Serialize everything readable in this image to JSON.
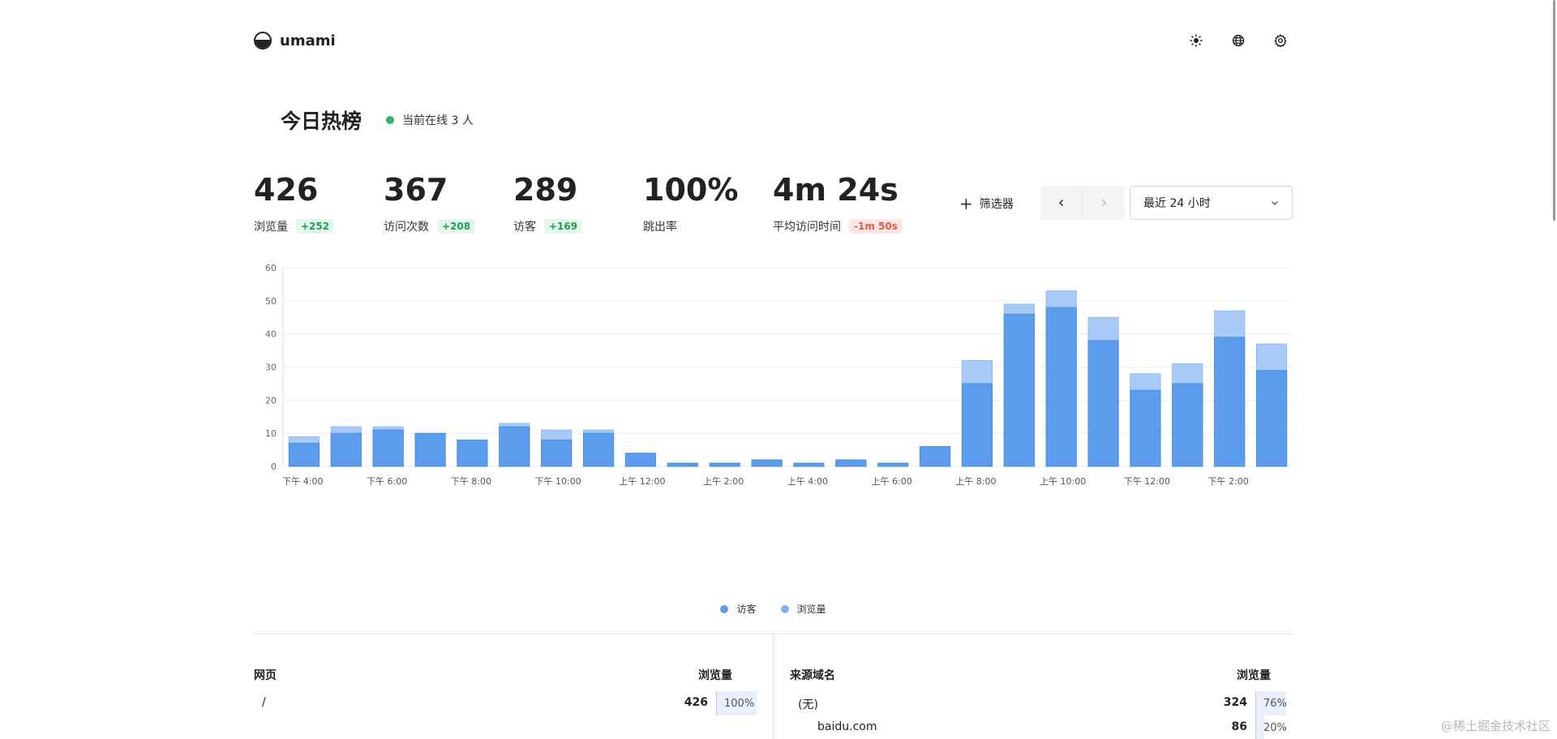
{
  "app": {
    "name": "umami"
  },
  "header": {
    "icons": [
      "sun-icon",
      "globe-icon",
      "gear-icon"
    ]
  },
  "page": {
    "title": "今日热榜",
    "online_text": "当前在线 3 人"
  },
  "metrics": [
    {
      "value": "426",
      "label": "浏览量",
      "change": "+252",
      "trend": "pos"
    },
    {
      "value": "367",
      "label": "访问次数",
      "change": "+208",
      "trend": "pos"
    },
    {
      "value": "289",
      "label": "访客",
      "change": "+169",
      "trend": "pos"
    },
    {
      "value": "100%",
      "label": "跳出率",
      "change": "",
      "trend": "none"
    },
    {
      "value": "4m 24s",
      "label": "平均访问时间",
      "change": "-1m 50s",
      "trend": "neg"
    }
  ],
  "controls": {
    "filter_label": "筛选器",
    "date_range": "最近 24 小时"
  },
  "colors": {
    "visitors": "#5b9cec",
    "pageviews": "#a9c9f6",
    "online": "#2bb36b"
  },
  "chart_data": {
    "type": "bar",
    "stacked": "overlay",
    "categories": [
      "下午 4:00",
      "下午 5:00",
      "下午 6:00",
      "下午 7:00",
      "下午 8:00",
      "下午 9:00",
      "下午 10:00",
      "下午 11:00",
      "上午 12:00",
      "上午 1:00",
      "上午 2:00",
      "上午 3:00",
      "上午 4:00",
      "上午 5:00",
      "上午 6:00",
      "上午 7:00",
      "上午 8:00",
      "上午 9:00",
      "上午 10:00",
      "上午 11:00",
      "下午 12:00",
      "下午 1:00",
      "下午 2:00",
      "下午 3:00"
    ],
    "tick_labels": [
      "下午 4:00",
      "下午 6:00",
      "下午 8:00",
      "下午 10:00",
      "上午 12:00",
      "上午 2:00",
      "上午 4:00",
      "上午 6:00",
      "上午 8:00",
      "上午 10:00",
      "下午 12:00",
      "下午 2:00"
    ],
    "series": [
      {
        "name": "访客",
        "values": [
          7,
          10,
          11,
          10,
          8,
          12,
          8,
          10,
          4,
          1,
          1,
          2,
          1,
          2,
          1,
          6,
          25,
          46,
          48,
          38,
          23,
          25,
          39,
          29
        ]
      },
      {
        "name": "浏览量",
        "values": [
          9,
          12,
          12,
          10,
          8,
          13,
          11,
          11,
          4,
          1,
          1,
          2,
          1,
          2,
          1,
          6,
          32,
          49,
          53,
          45,
          28,
          31,
          47,
          37
        ]
      }
    ],
    "yticks": [
      0,
      10,
      20,
      30,
      40,
      50,
      60
    ],
    "ylim": [
      0,
      60
    ],
    "grid": true,
    "legend_position": "bottom-center"
  },
  "tables": {
    "pages": {
      "title": "网页",
      "metric": "浏览量",
      "rows": [
        {
          "name": "/",
          "value": "426",
          "percent": "100%",
          "fraction": 1.0
        }
      ]
    },
    "referrers": {
      "title": "来源域名",
      "metric": "浏览量",
      "rows": [
        {
          "name": "(无)",
          "value": "324",
          "percent": "76%",
          "fraction": 0.76
        },
        {
          "name": "baidu.com",
          "value": "86",
          "percent": "20%",
          "fraction": 0.2
        }
      ]
    }
  },
  "watermark": "@稀土掘金技术社区"
}
